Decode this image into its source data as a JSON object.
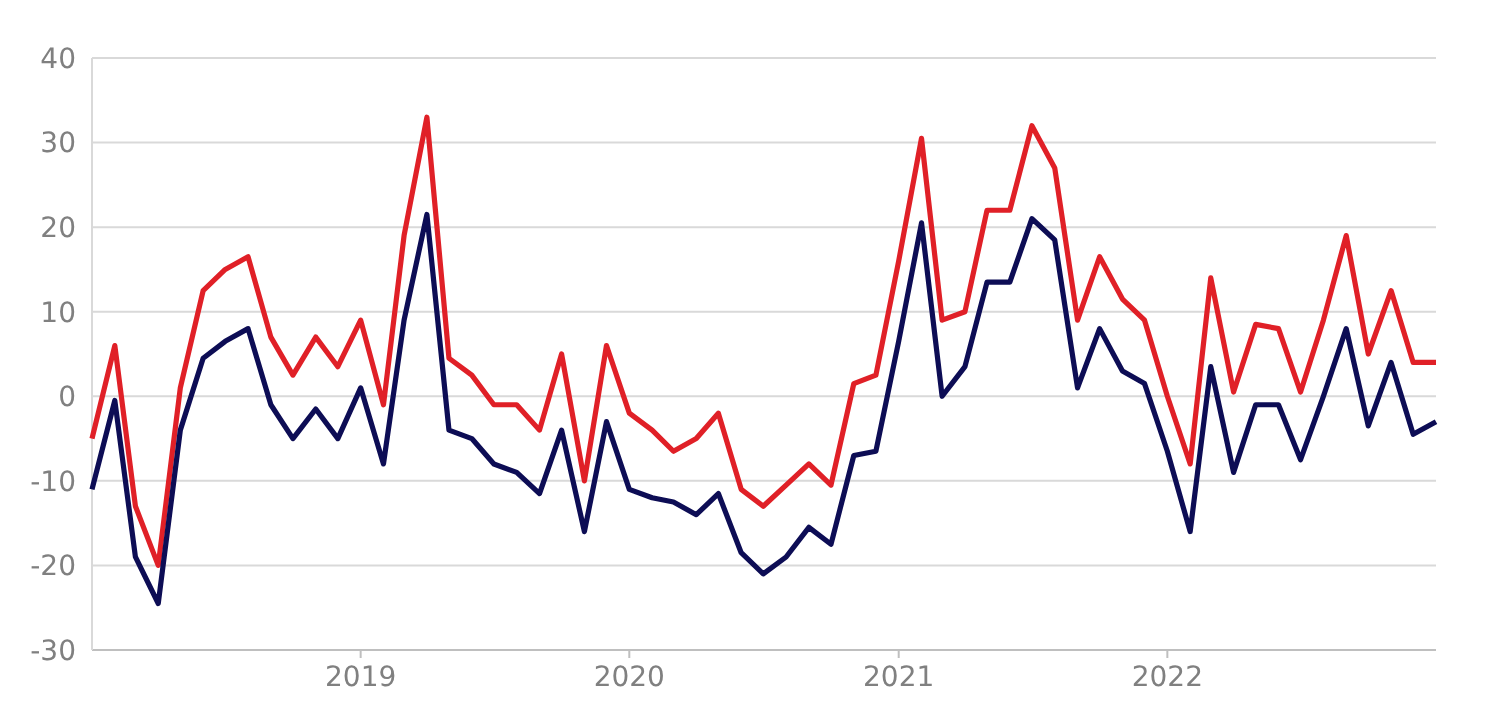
{
  "chart_data": {
    "type": "line",
    "x": [
      "2018-01",
      "2018-02",
      "2018-03",
      "2018-04",
      "2018-05",
      "2018-06",
      "2018-07",
      "2018-08",
      "2018-09",
      "2018-10",
      "2018-11",
      "2018-12",
      "2019-01",
      "2019-02",
      "2019-03",
      "2019-04",
      "2019-05",
      "2019-06",
      "2019-07",
      "2019-08",
      "2019-09",
      "2019-10",
      "2019-11",
      "2019-12",
      "2020-01",
      "2020-02",
      "2020-03",
      "2020-04",
      "2020-05",
      "2020-06",
      "2020-07",
      "2020-08",
      "2020-09",
      "2020-10",
      "2020-11",
      "2020-12",
      "2021-01",
      "2021-02",
      "2021-03",
      "2021-04",
      "2021-05",
      "2021-06",
      "2021-07",
      "2021-08",
      "2021-09",
      "2021-10",
      "2021-11",
      "2021-12",
      "2022-01",
      "2022-02",
      "2022-03",
      "2022-04",
      "2022-05",
      "2022-06",
      "2022-07",
      "2022-08",
      "2022-09",
      "2022-10",
      "2022-11",
      "2022-12",
      "2023-01"
    ],
    "series": [
      {
        "color": "#e02027",
        "values": [
          -5,
          6,
          -13,
          -20,
          1,
          12.5,
          15,
          16.5,
          7,
          2.5,
          7,
          3.5,
          9,
          -1,
          19,
          33,
          4.5,
          2.5,
          -1,
          -1,
          -4,
          5,
          -10,
          6,
          -2,
          -4,
          -6.5,
          -5,
          -2,
          -11,
          -13,
          -10.5,
          -8,
          -10.5,
          1.5,
          2.5,
          16,
          30.5,
          9,
          10,
          22,
          22,
          32,
          27,
          9,
          16.5,
          11.5,
          9,
          0,
          -8,
          14,
          0.5,
          8.5,
          8,
          0.5,
          9,
          19,
          5,
          12.5,
          4,
          4
        ]
      },
      {
        "color": "#0d0d55",
        "values": [
          -11,
          -0.5,
          -19,
          -24.5,
          -4,
          4.5,
          6.5,
          8,
          -1,
          -5,
          -1.5,
          -5,
          1,
          -8,
          9,
          21.5,
          -4,
          -5,
          -8,
          -9,
          -11.5,
          -4,
          -16,
          -3,
          -11,
          -12,
          -12.5,
          -14,
          -11.5,
          -18.5,
          -21,
          -19,
          -15.5,
          -17.5,
          -7,
          -6.5,
          6.5,
          20.5,
          0,
          3.5,
          13.5,
          13.5,
          21,
          18.5,
          1,
          8,
          3,
          1.5,
          -6.5,
          -16,
          3.5,
          -9,
          -1,
          -1,
          -7.5,
          0,
          8,
          -3.5,
          4,
          -4.5,
          -3
        ]
      }
    ],
    "xlim": [
      "2018-01",
      "2023-01"
    ],
    "xticks": [
      {
        "value": "2019-01",
        "label": "2019"
      },
      {
        "value": "2020-01",
        "label": "2020"
      },
      {
        "value": "2021-01",
        "label": "2021"
      },
      {
        "value": "2022-01",
        "label": "2022"
      }
    ],
    "ylim": [
      -30,
      40
    ],
    "yticks": [
      -30,
      -20,
      -10,
      0,
      10,
      20,
      30,
      40
    ],
    "grid": "y",
    "marker": "none",
    "line_style": "solid"
  }
}
